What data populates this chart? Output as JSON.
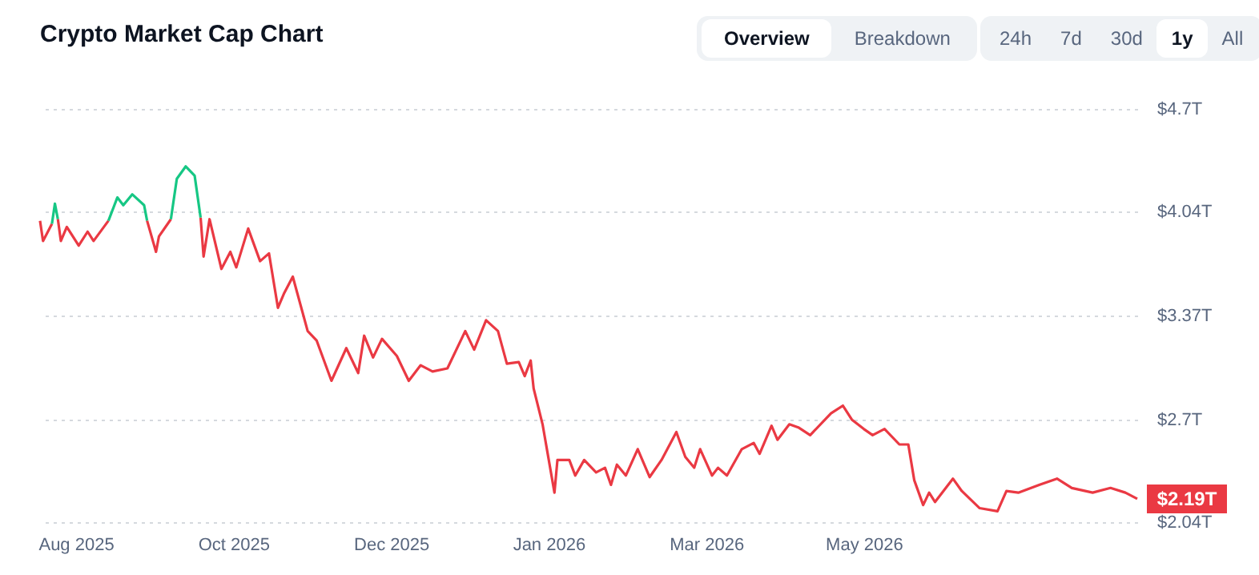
{
  "chart_data": {
    "type": "line",
    "title": "Crypto Market Cap Chart",
    "annotations": [
      "Overview",
      "Breakdown",
      "24h",
      "7d",
      "30d",
      "1y",
      "All",
      {
        "text": "$2.19T",
        "x": "2026-08-12",
        "y": 2.19
      }
    ],
    "series": [
      {
        "color": "#ea3943",
        "x": [
          "2025-08-08",
          "2025-08-09",
          "2025-08-12"
        ],
        "values": [
          3.98,
          3.85,
          3.96
        ]
      },
      {
        "color": "#16c784",
        "x": [
          "2025-08-12",
          "2025-08-13",
          "2025-08-14"
        ],
        "values": [
          3.96,
          4.09,
          3.99
        ]
      },
      {
        "color": "#ea3943",
        "x": [
          "2025-08-14",
          "2025-08-15",
          "2025-08-17",
          "2025-08-21",
          "2025-08-24",
          "2025-08-26",
          "2025-08-31"
        ],
        "values": [
          3.99,
          3.85,
          3.94,
          3.82,
          3.91,
          3.85,
          3.98
        ]
      },
      {
        "color": "#16c784",
        "x": [
          "2025-08-31",
          "2025-09-03",
          "2025-09-05",
          "2025-09-08",
          "2025-09-12",
          "2025-09-13"
        ],
        "values": [
          3.98,
          4.13,
          4.08,
          4.15,
          4.08,
          3.98
        ]
      },
      {
        "color": "#ea3943",
        "x": [
          "2025-09-13",
          "2025-09-16",
          "2025-09-17",
          "2025-09-21"
        ],
        "values": [
          3.98,
          3.78,
          3.88,
          3.99
        ]
      },
      {
        "color": "#16c784",
        "x": [
          "2025-09-21",
          "2025-09-23",
          "2025-09-26",
          "2025-09-29",
          "2025-10-01"
        ],
        "values": [
          3.99,
          4.25,
          4.33,
          4.27,
          4.0
        ]
      },
      {
        "color": "#ea3943",
        "x": [
          "2025-10-01",
          "2025-10-02",
          "2025-10-04",
          "2025-10-08",
          "2025-10-11",
          "2025-10-13",
          "2025-10-17",
          "2025-10-21",
          "2025-10-24",
          "2025-10-27",
          "2025-10-29",
          "2025-11-01",
          "2025-11-06",
          "2025-11-09",
          "2025-11-14",
          "2025-11-19",
          "2025-11-23",
          "2025-11-25",
          "2025-11-28",
          "2025-12-01",
          "2025-12-06",
          "2025-12-10",
          "2025-12-14",
          "2025-12-18",
          "2025-12-23",
          "2025-12-29",
          "2026-01-01",
          "2026-01-05",
          "2026-01-09",
          "2026-01-12",
          "2026-01-16",
          "2026-01-18",
          "2026-01-20",
          "2026-01-21",
          "2026-01-24",
          "2026-01-28",
          "2026-01-29",
          "2026-02-02",
          "2026-02-04",
          "2026-02-07",
          "2026-02-11",
          "2026-02-14",
          "2026-02-16",
          "2026-02-18",
          "2026-02-21",
          "2026-02-25",
          "2026-03-01",
          "2026-03-05",
          "2026-03-10",
          "2026-03-13",
          "2026-03-16",
          "2026-03-18",
          "2026-03-22",
          "2026-03-24",
          "2026-03-27",
          "2026-04-01",
          "2026-04-05",
          "2026-04-07",
          "2026-04-11",
          "2026-04-13",
          "2026-04-17",
          "2026-04-20",
          "2026-04-24",
          "2026-05-01",
          "2026-05-05",
          "2026-05-08",
          "2026-05-12",
          "2026-05-15",
          "2026-05-19",
          "2026-05-24",
          "2026-05-27",
          "2026-05-29",
          "2026-06-01",
          "2026-06-03",
          "2026-06-05",
          "2026-06-11",
          "2026-06-14",
          "2026-06-20",
          "2026-06-26",
          "2026-06-29",
          "2026-07-03",
          "2026-07-10",
          "2026-07-16",
          "2026-07-21",
          "2026-07-28",
          "2026-08-03",
          "2026-08-08",
          "2026-08-12"
        ],
        "values": [
          4.0,
          3.75,
          3.99,
          3.67,
          3.78,
          3.68,
          3.93,
          3.72,
          3.77,
          3.42,
          3.51,
          3.62,
          3.27,
          3.21,
          2.95,
          3.16,
          3.0,
          3.24,
          3.1,
          3.22,
          3.11,
          2.95,
          3.05,
          3.01,
          3.03,
          3.27,
          3.15,
          3.34,
          3.27,
          3.06,
          3.07,
          2.98,
          3.08,
          2.9,
          2.67,
          2.23,
          2.44,
          2.44,
          2.34,
          2.44,
          2.36,
          2.39,
          2.28,
          2.41,
          2.34,
          2.51,
          2.33,
          2.44,
          2.62,
          2.46,
          2.39,
          2.51,
          2.34,
          2.39,
          2.34,
          2.51,
          2.55,
          2.48,
          2.66,
          2.57,
          2.67,
          2.65,
          2.6,
          2.74,
          2.79,
          2.7,
          2.64,
          2.6,
          2.64,
          2.54,
          2.54,
          2.31,
          2.15,
          2.23,
          2.17,
          2.32,
          2.24,
          2.13,
          2.11,
          2.24,
          2.23,
          2.28,
          2.32,
          2.26,
          2.23,
          2.26,
          2.23,
          2.19
        ]
      }
    ],
    "xlim": [
      "2025-08-08",
      "2026-08-12"
    ],
    "xticks": [
      {
        "value": "2025-08-20",
        "label": "Aug 2025"
      },
      {
        "value": "2025-10-12",
        "label": "Oct 2025"
      },
      {
        "value": "2025-12-04",
        "label": "Dec 2025"
      },
      {
        "value": "2026-01-26",
        "label": "Jan 2026"
      },
      {
        "value": "2026-03-20",
        "label": "Mar 2026"
      },
      {
        "value": "2026-05-12",
        "label": "May 2026"
      }
    ],
    "ylim": [
      2.04,
      4.7
    ],
    "yticks": [
      {
        "value": 2.04,
        "label": "$2.04T"
      },
      {
        "value": 2.7,
        "label": "$2.7T"
      },
      {
        "value": 3.37,
        "label": "$3.37T"
      },
      {
        "value": 4.04,
        "label": "$4.04T"
      },
      {
        "value": 4.7,
        "label": "$4.7T"
      }
    ],
    "grid": "y",
    "legend": false,
    "marker": "none",
    "line_style": "solid"
  }
}
